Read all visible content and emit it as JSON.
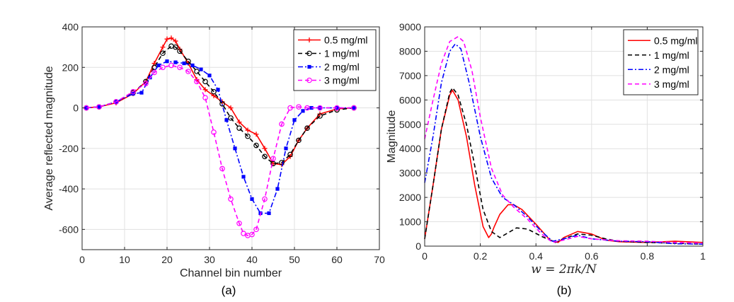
{
  "chart_data": [
    {
      "type": "line",
      "caption": "(a)",
      "xlabel": "Channel bin number",
      "ylabel": "Average reflected magnitude",
      "xlim": [
        0,
        70
      ],
      "ylim": [
        -700,
        400
      ],
      "xticks": [
        0,
        10,
        20,
        30,
        40,
        50,
        60,
        70
      ],
      "yticks": [
        -600,
        -400,
        -200,
        0,
        200,
        400
      ],
      "grid": true,
      "legend_position": "top-right",
      "series": [
        {
          "name": "0.5 mg/ml",
          "color": "#ff0000",
          "style": "solid",
          "marker": "plus",
          "x": [
            1,
            4,
            8,
            12,
            15,
            17,
            19,
            20,
            21,
            22,
            23,
            25,
            27,
            29,
            31,
            33,
            35,
            37,
            39,
            41,
            43,
            45,
            47,
            49,
            51,
            53,
            56,
            60,
            64
          ],
          "y": [
            0,
            5,
            25,
            70,
            130,
            220,
            300,
            340,
            345,
            330,
            290,
            220,
            140,
            90,
            60,
            30,
            0,
            -70,
            -110,
            -130,
            -200,
            -275,
            -280,
            -240,
            -160,
            -100,
            -30,
            -5,
            0
          ]
        },
        {
          "name": "1 mg/ml",
          "color": "#000000",
          "style": "dashed",
          "marker": "circle",
          "x": [
            1,
            4,
            8,
            12,
            15,
            17,
            19,
            21,
            22,
            23,
            25,
            27,
            29,
            31,
            33,
            35,
            37,
            39,
            41,
            43,
            45,
            47,
            49,
            51,
            53,
            56,
            60,
            64
          ],
          "y": [
            0,
            5,
            30,
            75,
            130,
            200,
            270,
            305,
            300,
            280,
            230,
            180,
            130,
            80,
            20,
            -50,
            -100,
            -140,
            -185,
            -240,
            -275,
            -270,
            -230,
            -160,
            -100,
            -40,
            -10,
            0
          ]
        },
        {
          "name": "2 mg/ml",
          "color": "#0000ff",
          "style": "dashdot",
          "marker": "square",
          "x": [
            1,
            4,
            8,
            12,
            14,
            16,
            18,
            20,
            22,
            24,
            26,
            28,
            30,
            32,
            34,
            36,
            38,
            40,
            42,
            44,
            46,
            48,
            50,
            52,
            54,
            56,
            60,
            64
          ],
          "y": [
            0,
            5,
            30,
            70,
            75,
            150,
            210,
            230,
            225,
            220,
            210,
            190,
            160,
            90,
            -60,
            -200,
            -340,
            -450,
            -520,
            -520,
            -400,
            -200,
            -60,
            -15,
            0,
            0,
            0,
            0
          ]
        },
        {
          "name": "3 mg/ml",
          "color": "#ff00ff",
          "style": "dashed",
          "marker": "circle",
          "x": [
            1,
            4,
            8,
            12,
            15,
            17,
            19,
            21,
            23,
            25,
            27,
            29,
            31,
            33,
            35,
            37,
            38,
            39,
            40,
            41,
            43,
            45,
            47,
            49,
            51,
            53,
            56,
            60,
            64
          ],
          "y": [
            0,
            5,
            30,
            80,
            120,
            175,
            200,
            210,
            200,
            180,
            130,
            50,
            -120,
            -300,
            -450,
            -570,
            -620,
            -630,
            -625,
            -600,
            -450,
            -250,
            -80,
            0,
            5,
            0,
            0,
            0,
            0
          ]
        }
      ]
    },
    {
      "type": "line",
      "caption": "(b)",
      "xlabel": "w = 2πk/N",
      "ylabel": "Magnitude",
      "xlim": [
        0,
        1
      ],
      "ylim": [
        0,
        9000
      ],
      "xticks": [
        "0",
        "0.2",
        "0.4",
        "0.6",
        "0.8",
        "1"
      ],
      "yticks": [
        "0",
        "1000",
        "2000",
        "3000",
        "4000",
        "5000",
        "6000",
        "7000",
        "8000",
        "9000"
      ],
      "grid": true,
      "legend_position": "top-right",
      "series": [
        {
          "name": "0.5 mg/ml",
          "color": "#ff0000",
          "style": "solid",
          "x": [
            0,
            0.03,
            0.06,
            0.09,
            0.1,
            0.12,
            0.15,
            0.18,
            0.21,
            0.23,
            0.24,
            0.25,
            0.27,
            0.3,
            0.32,
            0.35,
            0.4,
            0.45,
            0.48,
            0.5,
            0.55,
            0.6,
            0.65,
            0.7,
            0.8,
            0.9,
            1.0
          ],
          "y": [
            300,
            2500,
            4800,
            6200,
            6400,
            6000,
            4500,
            2500,
            800,
            350,
            500,
            800,
            1300,
            1700,
            1700,
            1500,
            900,
            250,
            150,
            350,
            600,
            500,
            250,
            180,
            150,
            200,
            150
          ]
        },
        {
          "name": "1 mg/ml",
          "color": "#000000",
          "style": "dashed",
          "x": [
            0,
            0.03,
            0.06,
            0.09,
            0.1,
            0.12,
            0.15,
            0.18,
            0.21,
            0.24,
            0.27,
            0.3,
            0.33,
            0.37,
            0.42,
            0.47,
            0.5,
            0.55,
            0.6,
            0.65,
            0.7,
            0.8,
            0.9,
            1.0
          ],
          "y": [
            300,
            2500,
            4800,
            6300,
            6500,
            6200,
            5000,
            3300,
            1500,
            600,
            350,
            550,
            750,
            700,
            400,
            150,
            300,
            500,
            450,
            300,
            200,
            150,
            120,
            80
          ]
        },
        {
          "name": "2 mg/ml",
          "color": "#0000ff",
          "style": "dashdot",
          "x": [
            0,
            0.03,
            0.06,
            0.09,
            0.11,
            0.13,
            0.16,
            0.2,
            0.24,
            0.28,
            0.32,
            0.37,
            0.42,
            0.46,
            0.5,
            0.55,
            0.6,
            0.7,
            0.8,
            0.9,
            1.0
          ],
          "y": [
            2600,
            4500,
            6700,
            8000,
            8300,
            8100,
            6700,
            4500,
            2800,
            2000,
            1700,
            1200,
            600,
            200,
            300,
            450,
            300,
            200,
            180,
            100,
            80
          ]
        },
        {
          "name": "3 mg/ml",
          "color": "#ff00ff",
          "style": "dashed",
          "x": [
            0,
            0.03,
            0.06,
            0.09,
            0.12,
            0.14,
            0.17,
            0.2,
            0.24,
            0.28,
            0.32,
            0.37,
            0.42,
            0.46,
            0.5,
            0.55,
            0.6,
            0.7,
            0.8,
            0.9,
            1.0
          ],
          "y": [
            4400,
            6000,
            7500,
            8400,
            8600,
            8400,
            7200,
            5300,
            3200,
            2100,
            1600,
            1100,
            500,
            150,
            250,
            400,
            300,
            220,
            200,
            150,
            120
          ]
        }
      ]
    }
  ]
}
